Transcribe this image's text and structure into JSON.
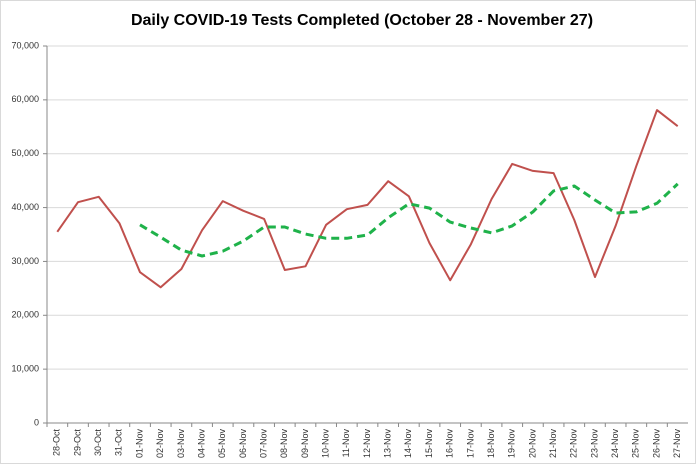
{
  "chart_data": {
    "type": "line",
    "title": "Daily COVID-19 Tests Completed (October 28 - November 27)",
    "categories": [
      "28-Oct",
      "29-Oct",
      "30-Oct",
      "31-Oct",
      "01-Nov",
      "02-Nov",
      "03-Nov",
      "04-Nov",
      "05-Nov",
      "06-Nov",
      "07-Nov",
      "08-Nov",
      "09-Nov",
      "10-Nov",
      "11-Nov",
      "12-Nov",
      "13-Nov",
      "14-Nov",
      "15-Nov",
      "16-Nov",
      "17-Nov",
      "18-Nov",
      "19-Nov",
      "20-Nov",
      "21-Nov",
      "22-Nov",
      "23-Nov",
      "24-Nov",
      "25-Nov",
      "26-Nov",
      "27-Nov"
    ],
    "series": [
      {
        "color": "#c0504d",
        "dashed": false,
        "values": [
          35500,
          41000,
          42000,
          37100,
          28000,
          25200,
          28600,
          35800,
          41200,
          39400,
          37900,
          28400,
          29100,
          36800,
          39700,
          40500,
          44900,
          42100,
          33400,
          26500,
          33200,
          41600,
          48100,
          46800,
          46400,
          37700,
          27100,
          36600,
          47700,
          58100,
          55100
        ]
      },
      {
        "color": "#1fb24a",
        "dashed": true,
        "values": [
          null,
          null,
          null,
          null,
          36800,
          34500,
          32100,
          31000,
          31900,
          33800,
          36400,
          36400,
          35100,
          34300,
          34300,
          34900,
          38100,
          40700,
          39900,
          37300,
          36200,
          35300,
          36600,
          39200,
          43100,
          44000,
          41400,
          39000,
          39200,
          40800,
          44400
        ]
      }
    ],
    "ylim": [
      0,
      70000
    ],
    "yticks": [
      {
        "value": 0,
        "label": "0"
      },
      {
        "value": 10000,
        "label": "10,000"
      },
      {
        "value": 20000,
        "label": "20,000"
      },
      {
        "value": 30000,
        "label": "30,000"
      },
      {
        "value": 40000,
        "label": "40,000"
      },
      {
        "value": 50000,
        "label": "50,000"
      },
      {
        "value": 60000,
        "label": "60,000"
      },
      {
        "value": 70000,
        "label": "70,000"
      }
    ],
    "grid": true
  }
}
